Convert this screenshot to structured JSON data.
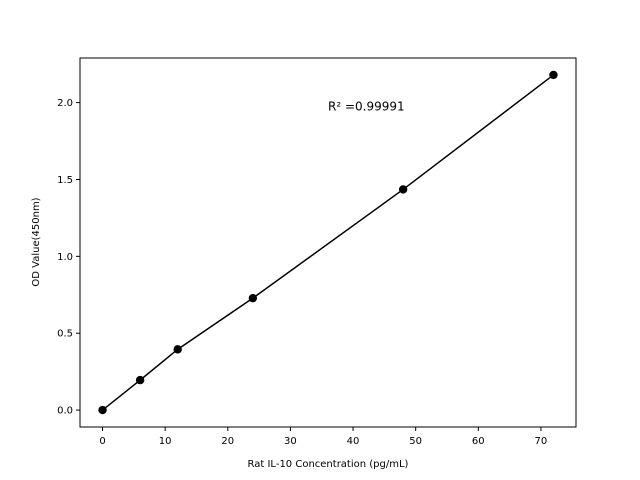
{
  "chart_data": {
    "type": "scatter",
    "title": "",
    "xlabel": "Rat IL-10 Concentration (pg/mL)",
    "ylabel": "OD Value(450nm)",
    "xlim": [
      -3.6,
      75.6
    ],
    "ylim": [
      -0.11,
      2.29
    ],
    "xticks": [
      0,
      10,
      20,
      30,
      40,
      50,
      60,
      70
    ],
    "yticks": [
      0.0,
      0.5,
      1.0,
      1.5,
      2.0
    ],
    "xtick_labels": [
      "0",
      "10",
      "20",
      "30",
      "40",
      "50",
      "60",
      "70"
    ],
    "ytick_labels": [
      "0.0",
      "0.5",
      "1.0",
      "1.5",
      "2.0"
    ],
    "grid": false,
    "series": [
      {
        "x": [
          0,
          6,
          12,
          24,
          48,
          72
        ],
        "y": [
          0.0,
          0.195,
          0.395,
          0.728,
          1.435,
          2.18
        ],
        "color": "#000000",
        "marker": "circle",
        "line": true
      }
    ],
    "annotations": [
      {
        "text": "R² =0.99991",
        "x": 36,
        "y": 1.98
      }
    ]
  }
}
